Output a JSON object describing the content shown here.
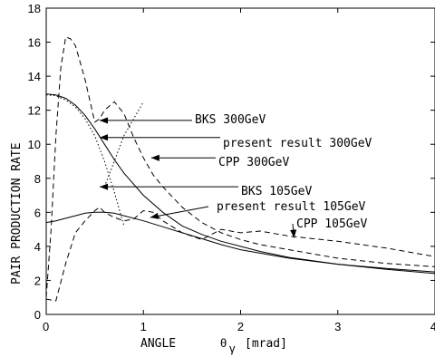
{
  "chart_data": {
    "type": "line",
    "title": "",
    "xlabel": "ANGLE",
    "xlabel_symbol": "θ",
    "xlabel_subscript": "γ",
    "xlabel_unit": "[mrad]",
    "ylabel": "PAIR  PRODUCTION  RATE",
    "xlim": [
      0,
      4
    ],
    "ylim": [
      0,
      18
    ],
    "xticks": [
      "0",
      "1",
      "2",
      "3",
      "4"
    ],
    "yticks": [
      "0",
      "2",
      "4",
      "6",
      "8",
      "10",
      "12",
      "14",
      "16",
      "18"
    ],
    "grid": false,
    "legend": "annotations-with-arrows",
    "series": [
      {
        "name": "BKS 300GeV",
        "style": "dotted",
        "x": [
          0,
          0.1,
          0.2,
          0.3,
          0.4,
          0.5,
          0.6,
          0.7,
          0.8
        ],
        "y": [
          12.9,
          12.85,
          12.6,
          12.2,
          11.5,
          10.5,
          9.0,
          7.2,
          5.2
        ]
      },
      {
        "name": "present result 300GeV",
        "style": "solid",
        "x": [
          0,
          0.1,
          0.2,
          0.3,
          0.4,
          0.5,
          0.6,
          0.7,
          0.8,
          1.0,
          1.2,
          1.4,
          1.6,
          1.8,
          2.0,
          2.2,
          2.5,
          3.0,
          3.5,
          4.0
        ],
        "y": [
          12.95,
          12.9,
          12.7,
          12.3,
          11.7,
          10.9,
          10.0,
          9.1,
          8.3,
          7.0,
          6.0,
          5.2,
          4.7,
          4.3,
          4.0,
          3.7,
          3.35,
          2.95,
          2.65,
          2.4
        ]
      },
      {
        "name": "CPP 300GeV",
        "style": "dashed",
        "x": [
          0,
          0.05,
          0.1,
          0.15,
          0.2,
          0.25,
          0.3,
          0.4,
          0.5,
          0.55,
          0.6,
          0.7,
          0.8,
          0.9,
          1.0,
          1.1,
          1.2,
          1.4,
          1.6,
          1.8,
          2.0,
          2.2,
          2.5,
          3.0,
          3.5,
          4.0
        ],
        "y": [
          1.0,
          5.0,
          10.5,
          14.5,
          16.3,
          16.2,
          15.8,
          13.8,
          11.3,
          11.5,
          12.0,
          12.5,
          11.8,
          10.4,
          9.2,
          8.2,
          7.5,
          6.3,
          5.4,
          4.8,
          4.4,
          4.1,
          3.8,
          3.3,
          3.0,
          2.8
        ]
      },
      {
        "name": "BKS 105GeV",
        "style": "dotted",
        "x": [
          0.6,
          0.7,
          0.8,
          0.9,
          1.0
        ],
        "y": [
          7.5,
          9.0,
          10.5,
          11.5,
          12.5
        ]
      },
      {
        "name": "present result 105GeV",
        "style": "solid",
        "x": [
          0,
          0.1,
          0.2,
          0.3,
          0.4,
          0.5,
          0.6,
          0.7,
          0.8,
          1.0,
          1.2,
          1.4,
          1.6,
          1.8,
          2.0,
          2.2,
          2.5,
          3.0,
          3.5,
          4.0
        ],
        "y": [
          5.4,
          5.5,
          5.65,
          5.8,
          5.95,
          6.0,
          6.0,
          5.95,
          5.8,
          5.5,
          5.15,
          4.8,
          4.45,
          4.1,
          3.8,
          3.6,
          3.3,
          2.95,
          2.7,
          2.5
        ]
      },
      {
        "name": "CPP 105GeV",
        "style": "dashed",
        "x": [
          0,
          0.1,
          0.2,
          0.3,
          0.4,
          0.5,
          0.55,
          0.6,
          0.7,
          0.8,
          0.9,
          1.0,
          1.1,
          1.2,
          1.4,
          1.6,
          1.8,
          2.0,
          2.2,
          2.5,
          3.0,
          3.5,
          4.0
        ],
        "y": [
          0.9,
          0.8,
          3.0,
          4.8,
          5.5,
          6.1,
          6.3,
          6.0,
          5.7,
          5.5,
          5.6,
          6.1,
          6.0,
          5.5,
          4.8,
          4.4,
          5.0,
          4.8,
          4.9,
          4.6,
          4.3,
          3.9,
          3.4
        ]
      }
    ],
    "annotations": [
      {
        "text": "BKS 300GeV",
        "arrow_to": [
          0.55,
          11.4
        ]
      },
      {
        "text": "present result 300GeV",
        "arrow_to": [
          0.55,
          10.4
        ]
      },
      {
        "text": "CPP 300GeV",
        "arrow_to": [
          1.08,
          9.2
        ]
      },
      {
        "text": "BKS 105GeV",
        "arrow_to": [
          0.55,
          7.5
        ]
      },
      {
        "text": "present result 105GeV",
        "arrow_to": [
          1.07,
          5.7
        ]
      },
      {
        "text": "CPP 105GeV",
        "arrow_to": [
          2.55,
          4.5
        ]
      }
    ]
  }
}
